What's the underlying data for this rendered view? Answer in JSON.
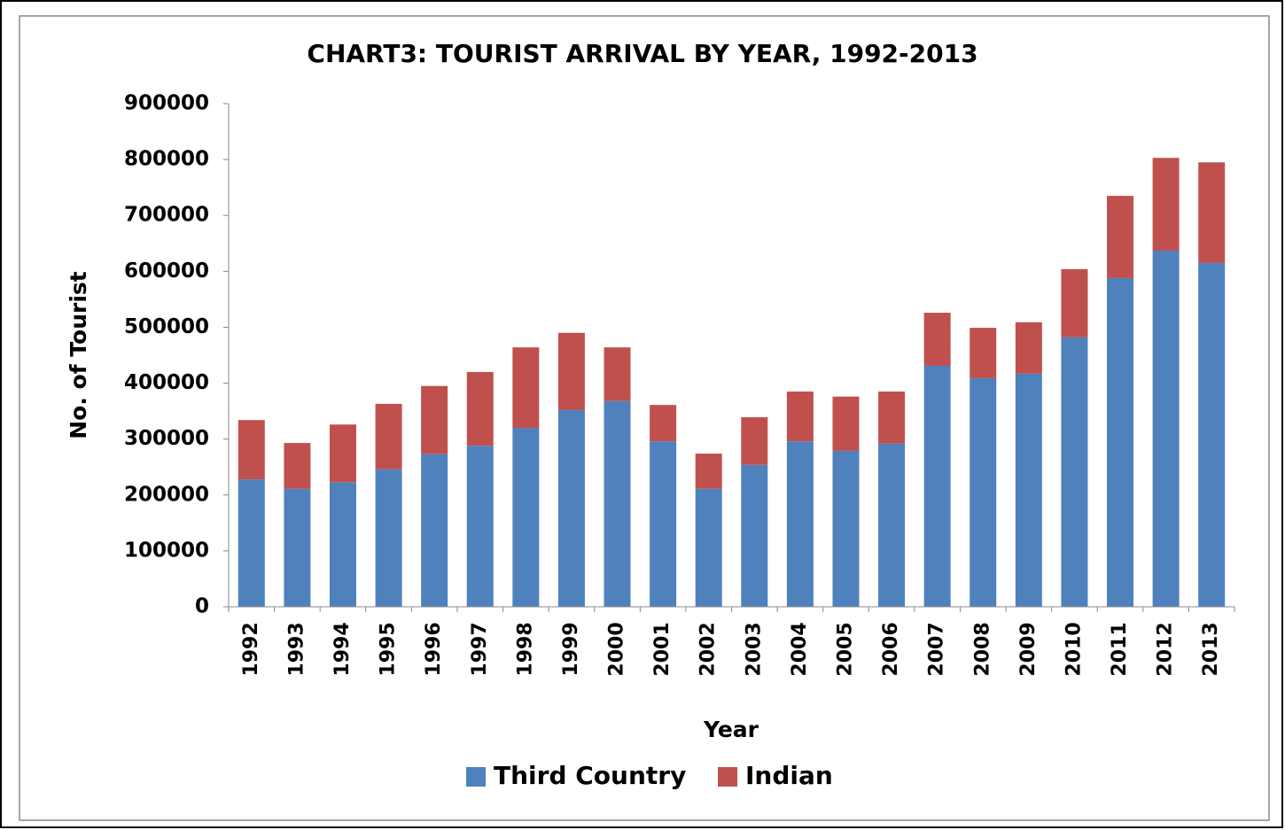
{
  "chart_data": {
    "type": "stacked_bar",
    "title": "CHART3: TOURIST ARRIVAL BY YEAR, 1992-2013",
    "x_label": "Year",
    "y_label": "No. of Tourist",
    "categories": [
      "1992",
      "1993",
      "1994",
      "1995",
      "1996",
      "1997",
      "1998",
      "1999",
      "2000",
      "2001",
      "2002",
      "2003",
      "2004",
      "2005",
      "2006",
      "2007",
      "2008",
      "2009",
      "2010",
      "2011",
      "2012",
      "2013"
    ],
    "series": [
      {
        "name": "Third Country",
        "color": "#4f81bd",
        "values": [
          228000,
          211000,
          223000,
          246000,
          273000,
          288000,
          320000,
          352000,
          368000,
          296000,
          211000,
          254000,
          296000,
          279000,
          292000,
          431000,
          409000,
          417000,
          482000,
          588000,
          637000,
          615000
        ]
      },
      {
        "name": "Indian",
        "color": "#c0504d",
        "values": [
          106000,
          82000,
          103000,
          117000,
          122000,
          132000,
          144000,
          138000,
          96000,
          65000,
          63000,
          85000,
          89000,
          97000,
          93000,
          95000,
          90000,
          92000,
          122000,
          147000,
          166000,
          180000
        ]
      }
    ],
    "ylim": [
      0,
      900000
    ],
    "yticks": [
      0,
      100000,
      200000,
      300000,
      400000,
      500000,
      600000,
      700000,
      800000,
      900000
    ],
    "grid": false,
    "legend": "bottom"
  }
}
